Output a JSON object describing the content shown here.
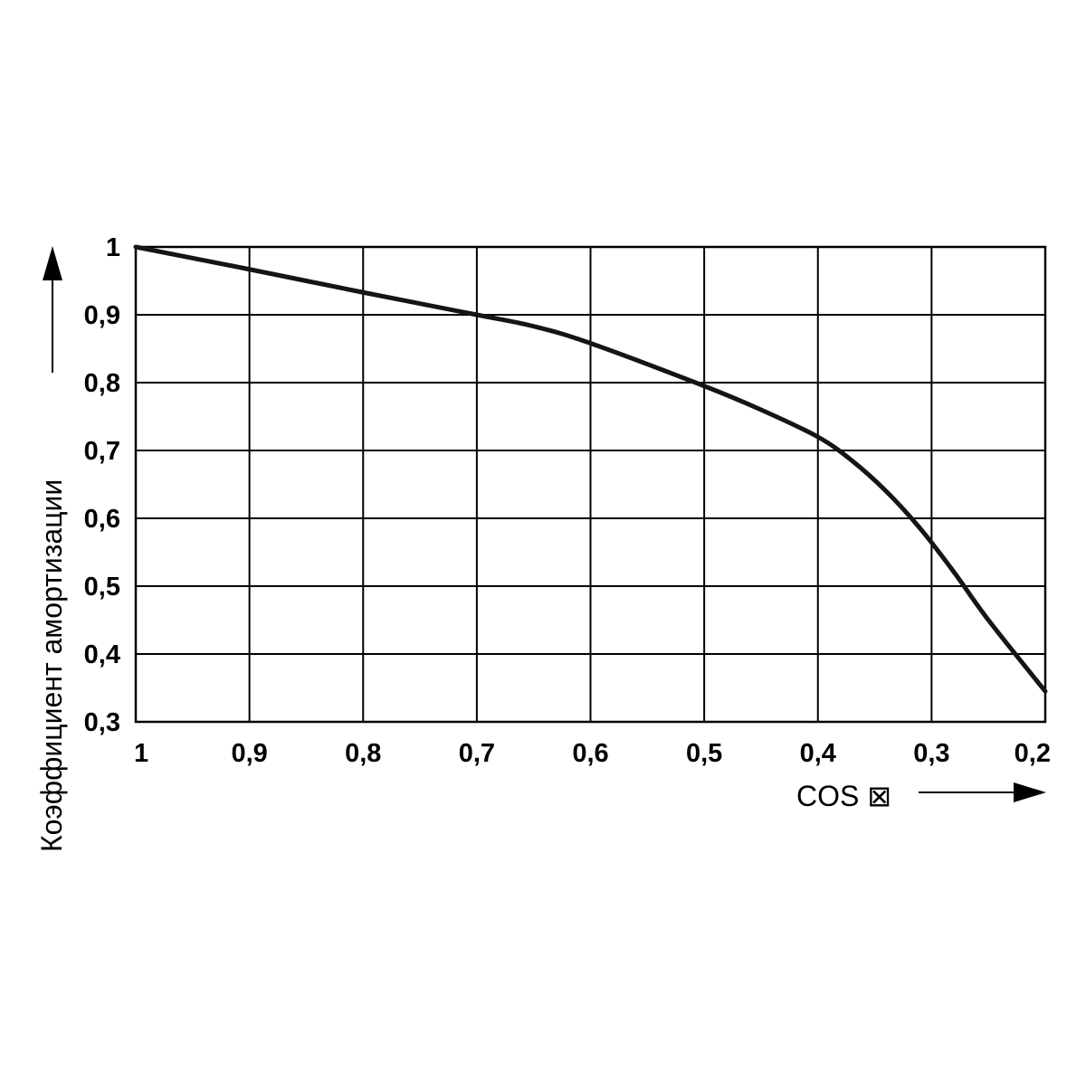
{
  "chart_data": {
    "type": "line",
    "title": "",
    "xlabel": "COS ⊠",
    "ylabel": "Коэффициент амортизации",
    "x_direction": "reversed",
    "xlim": [
      1,
      0.2
    ],
    "ylim": [
      0.3,
      1
    ],
    "grid": true,
    "x_ticks": [
      1,
      0.9,
      0.8,
      0.7,
      0.6,
      0.5,
      0.4,
      0.3,
      0.2
    ],
    "x_tick_labels": [
      "1",
      "0,9",
      "0,8",
      "0,7",
      "0,6",
      "0,5",
      "0,4",
      "0,3",
      "0,2"
    ],
    "y_ticks": [
      1,
      0.9,
      0.8,
      0.7,
      0.6,
      0.5,
      0.4,
      0.3
    ],
    "y_tick_labels": [
      "1",
      "0,9",
      "0,8",
      "0,7",
      "0,6",
      "0,5",
      "0,4",
      "0,3"
    ],
    "series": [
      {
        "x": [
          1,
          0.9,
          0.8,
          0.7,
          0.65,
          0.6,
          0.5,
          0.45,
          0.4,
          0.37,
          0.34,
          0.31,
          0.28,
          0.25,
          0.2
        ],
        "y": [
          1,
          0.967,
          0.933,
          0.9,
          0.883,
          0.858,
          0.795,
          0.76,
          0.72,
          0.685,
          0.64,
          0.585,
          0.52,
          0.45,
          0.345
        ],
        "color": "#151515"
      }
    ]
  }
}
